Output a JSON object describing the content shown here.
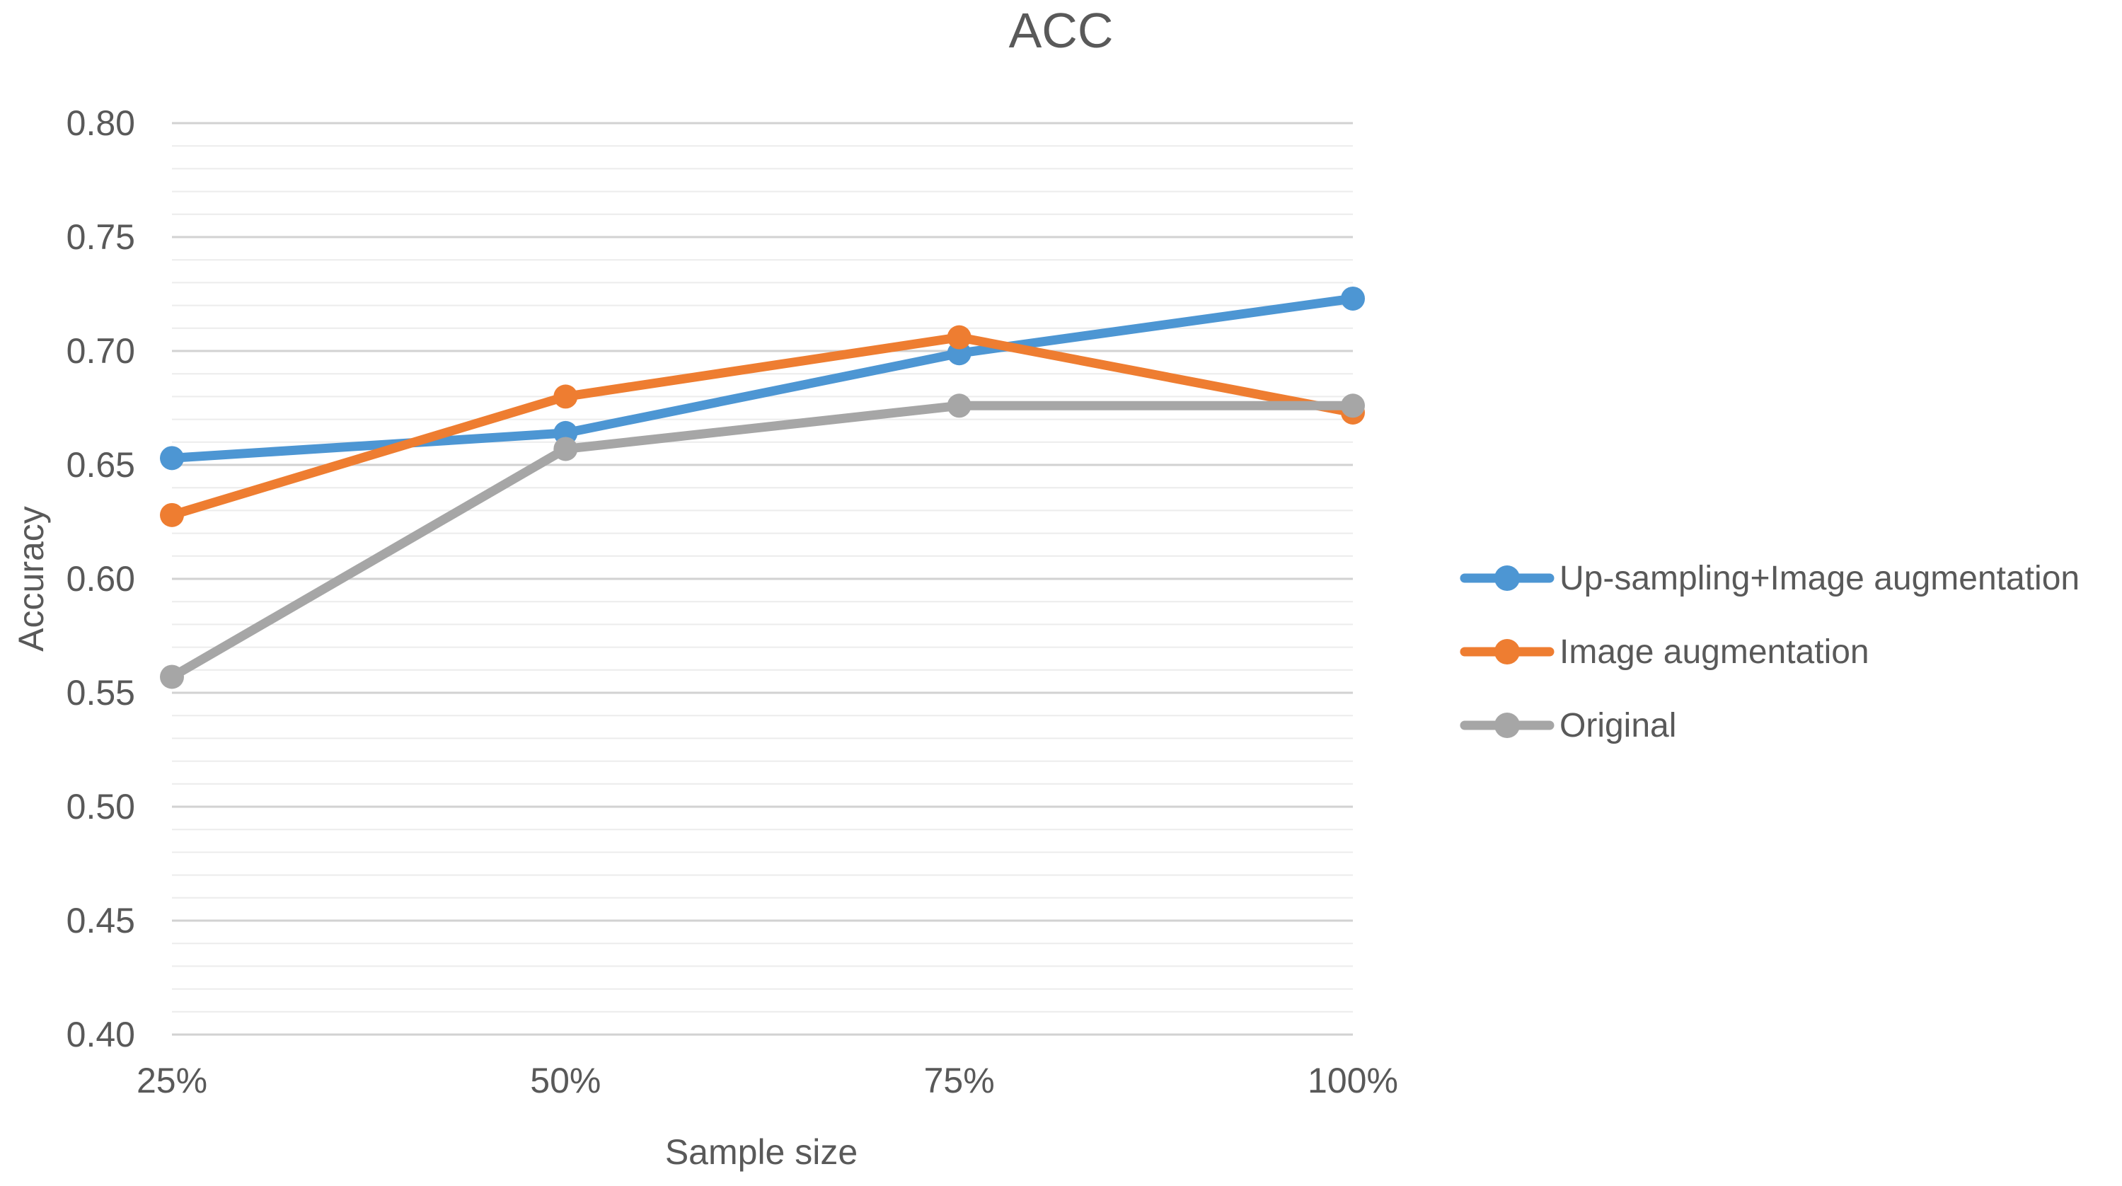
{
  "chart_data": {
    "type": "line",
    "title": "ACC",
    "xlabel": "Sample size",
    "ylabel": "Accuracy",
    "categories": [
      "25%",
      "50%",
      "75%",
      "100%"
    ],
    "series": [
      {
        "name": "Up-sampling+Image augmentation",
        "color": "#4D96D3",
        "values": [
          0.653,
          0.664,
          0.699,
          0.723
        ]
      },
      {
        "name": "Image augmentation",
        "color": "#EE7D31",
        "values": [
          0.628,
          0.68,
          0.706,
          0.673
        ]
      },
      {
        "name": "Original",
        "color": "#A6A6A6",
        "values": [
          0.557,
          0.657,
          0.676,
          0.676
        ]
      }
    ],
    "ylim": [
      0.4,
      0.8
    ],
    "y_major_step": 0.05,
    "y_minor_step": 0.01,
    "y_tick_decimals": 2,
    "y_tick_labels": [
      "0.40",
      "0.45",
      "0.50",
      "0.55",
      "0.60",
      "0.65",
      "0.70",
      "0.75",
      "0.80"
    ],
    "grid": "horizontal major and minor gridlines",
    "legend_position": "right",
    "colors": {
      "text": "#595959",
      "grid_major": "#D2D2D2",
      "grid_minor": "#ECECEC",
      "background": "#FFFFFF"
    }
  }
}
